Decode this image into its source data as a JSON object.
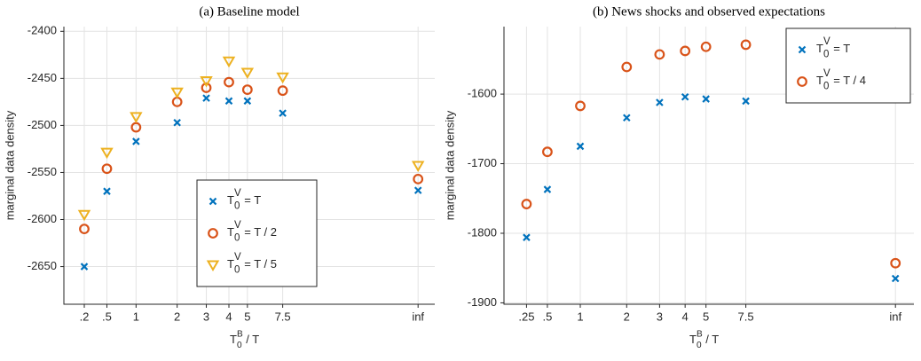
{
  "chart_data": [
    {
      "type": "scatter",
      "title": "(a) Baseline model",
      "xlabel": {
        "base": "T",
        "sub": "0",
        "sup": "B",
        "rest": " / T"
      },
      "ylabel": "marginal data density",
      "categories": [
        ".2",
        ".5",
        "1",
        "2",
        "3",
        "4",
        "5",
        "7.5",
        "inf"
      ],
      "ylim": [
        -2690,
        -2395
      ],
      "yticks": [
        -2650,
        -2600,
        -2550,
        -2500,
        -2450,
        -2400
      ],
      "grid": true,
      "legend": "lower-center",
      "series": [
        {
          "name": {
            "base": "T",
            "sub": "0",
            "sup": "V",
            "rest": " = T"
          },
          "color": "#0072bd",
          "marker": "x",
          "values": [
            -2650,
            -2570,
            -2517,
            -2497,
            -2471,
            -2474,
            -2474,
            -2487,
            -2569
          ]
        },
        {
          "name": {
            "base": "T",
            "sub": "0",
            "sup": "V",
            "rest": " = T / 2"
          },
          "color": "#d95319",
          "marker": "circle",
          "values": [
            -2610,
            -2546,
            -2502,
            -2475,
            -2460,
            -2454,
            -2462,
            -2463,
            -2557
          ]
        },
        {
          "name": {
            "base": "T",
            "sub": "0",
            "sup": "V",
            "rest": " = T / 5"
          },
          "color": "#edb120",
          "marker": "triangle-down",
          "values": [
            -2595,
            -2529,
            -2491,
            -2465,
            -2453,
            -2432,
            -2444,
            -2449,
            -2543
          ]
        }
      ]
    },
    {
      "type": "scatter",
      "title": "(b) News shocks and observed expectations",
      "xlabel": {
        "base": "T",
        "sub": "0",
        "sup": "B",
        "rest": " / T"
      },
      "ylabel": "marginal data density",
      "categories": [
        ".25",
        ".5",
        "1",
        "2",
        "3",
        "4",
        "5",
        "7.5",
        "inf"
      ],
      "ylim": [
        -1902,
        -1503
      ],
      "yticks": [
        -1900,
        -1800,
        -1700,
        -1600
      ],
      "grid": true,
      "legend": "upper-right",
      "series": [
        {
          "name": {
            "base": "T",
            "sub": "0",
            "sup": "V",
            "rest": " = T"
          },
          "color": "#0072bd",
          "marker": "x",
          "values": [
            -1806,
            -1737,
            -1675,
            -1634,
            -1612,
            -1604,
            -1607,
            -1610,
            -1865
          ]
        },
        {
          "name": {
            "base": "T",
            "sub": "0",
            "sup": "V",
            "rest": " = T / 4"
          },
          "color": "#d95319",
          "marker": "circle",
          "values": [
            -1758,
            -1683,
            -1617,
            -1561,
            -1543,
            -1538,
            -1532,
            -1529,
            -1843
          ]
        }
      ]
    }
  ]
}
